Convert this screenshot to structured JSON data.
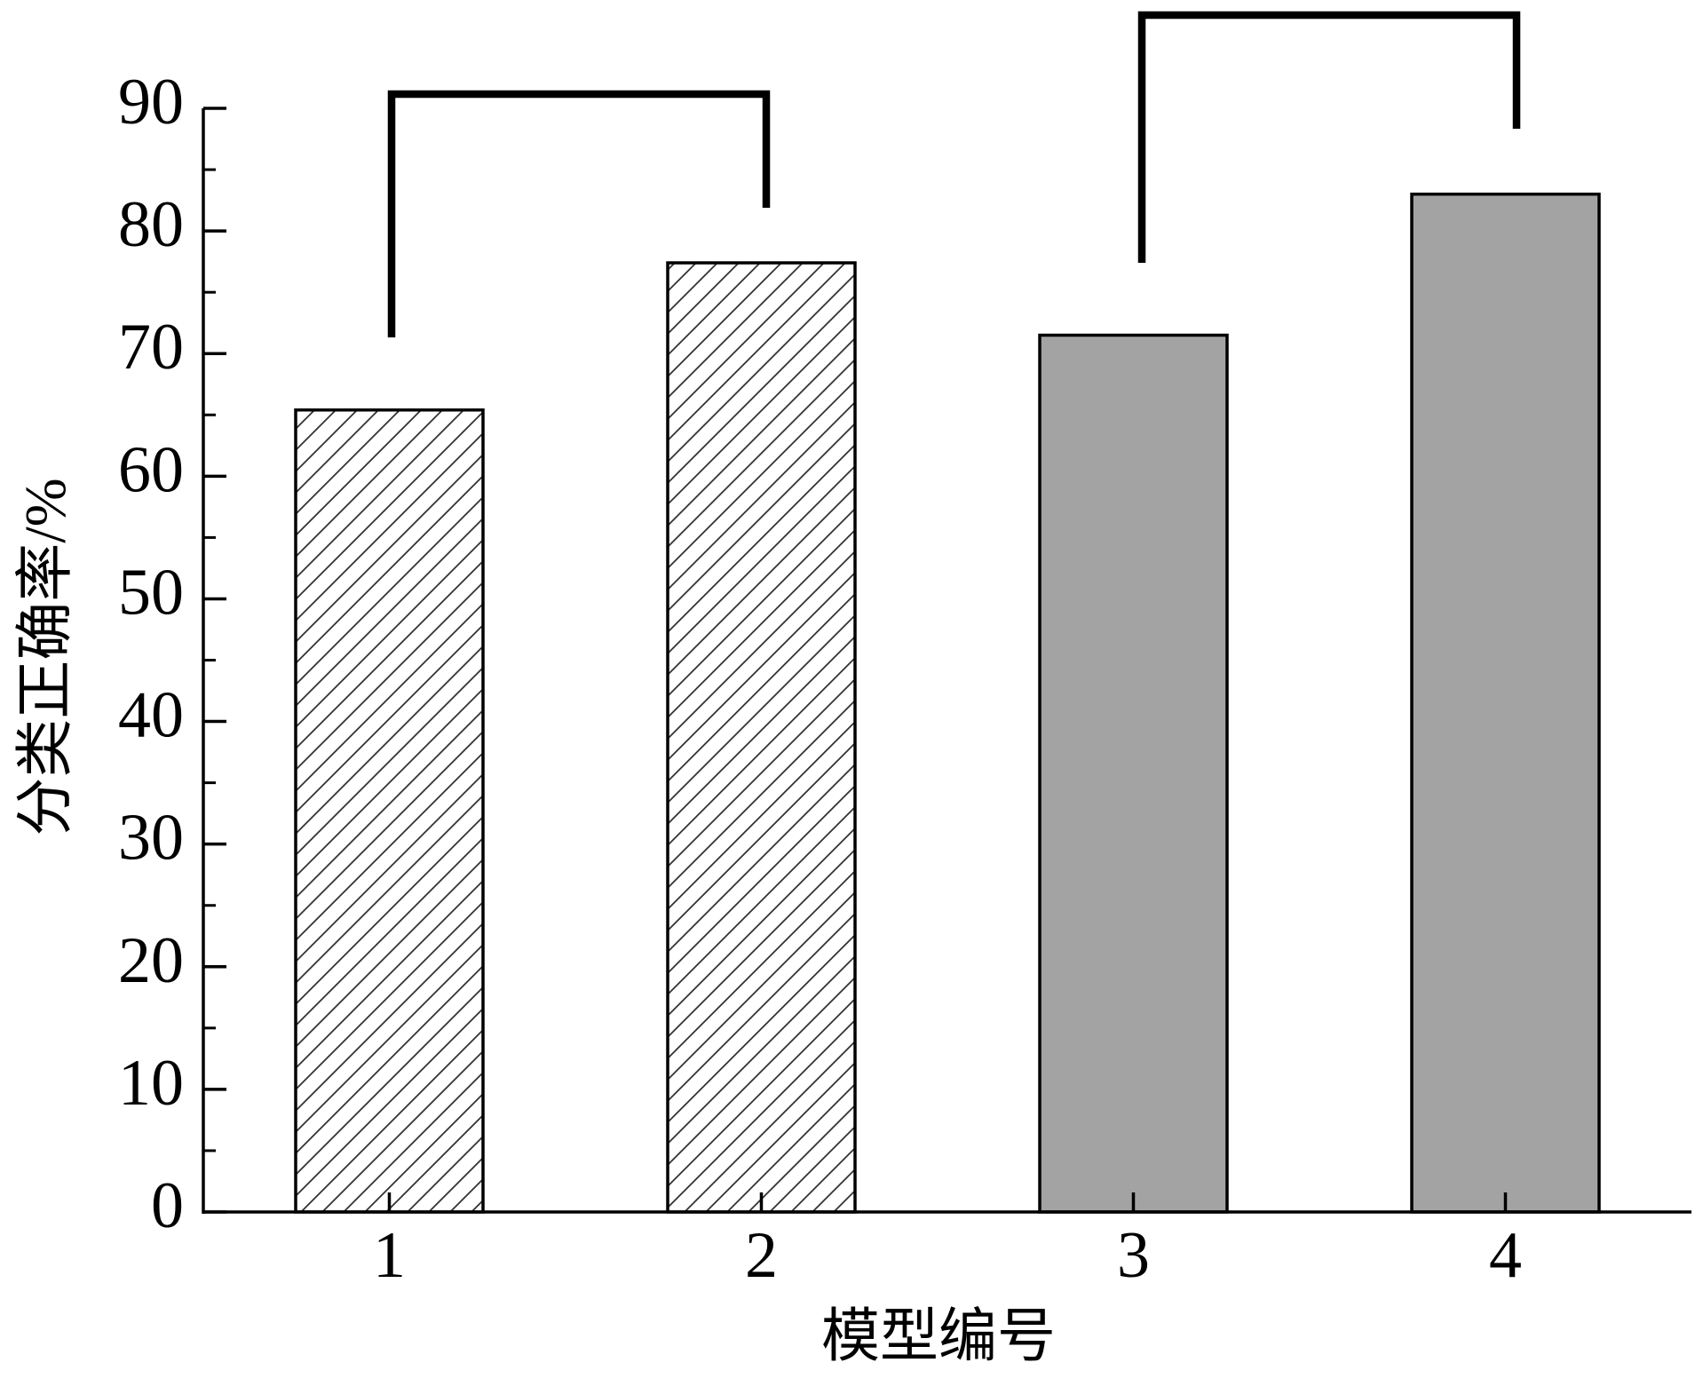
{
  "chart_data": {
    "type": "bar",
    "ylabel": "分类正确率/%",
    "xlabel": "模型编号",
    "categories": [
      "1",
      "2",
      "3",
      "4"
    ],
    "values": [
      65.4,
      77.4,
      71.5,
      83.0
    ],
    "colors": [
      "#ffffff",
      "#ffffff",
      "#a3a3a3",
      "#a3a3a3"
    ],
    "hatch": [
      true,
      true,
      false,
      false
    ],
    "ylim": [
      0,
      90
    ],
    "yticks": [
      0,
      10,
      20,
      30,
      40,
      50,
      60,
      70,
      80,
      90
    ],
    "yminorticks": [
      5,
      15,
      25,
      35,
      45,
      55,
      65,
      75,
      85
    ]
  }
}
